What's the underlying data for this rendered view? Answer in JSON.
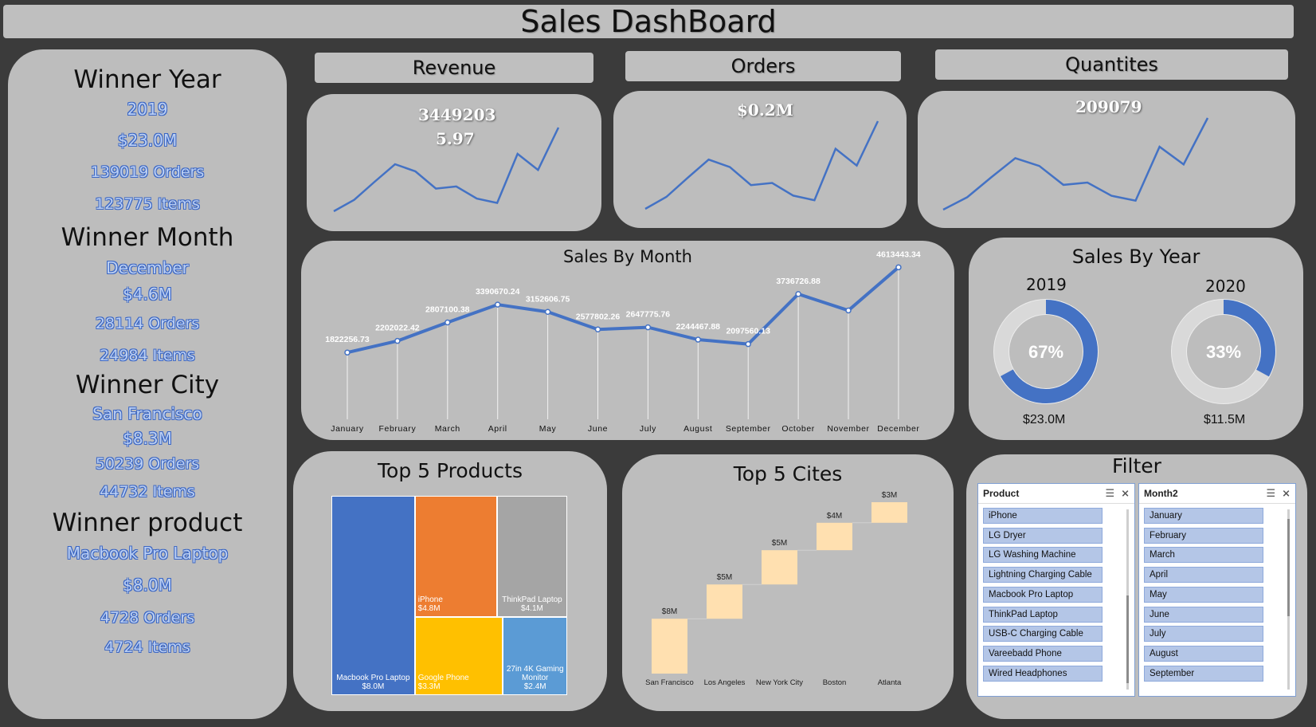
{
  "dashboard": {
    "title": "Sales DashBoard"
  },
  "winners": {
    "year": {
      "heading": "Winner Year",
      "value": "2019",
      "revenue": "$23.0M",
      "orders": "139019 Orders",
      "items": "123775 Items"
    },
    "month": {
      "heading": "Winner Month",
      "value": "December",
      "revenue": "$4.6M",
      "orders": "28114 Orders",
      "items": "24984 Items"
    },
    "city": {
      "heading": "Winner City",
      "value": "San Francisco",
      "revenue": "$8.3M",
      "orders": "50239 Orders",
      "items": "44732 Items"
    },
    "product": {
      "heading": "Winner product",
      "value": "Macbook Pro Laptop",
      "revenue": "$8.0M",
      "orders": "4728 Orders",
      "items": "4724 Items"
    }
  },
  "kpis": {
    "revenue": {
      "label": "Revenue",
      "value": "3449203",
      "value2": "5.97"
    },
    "orders": {
      "label": "Orders",
      "value": "$0.2M"
    },
    "quantities": {
      "label": "Quantites",
      "value": "209079"
    }
  },
  "sparkline": [
    1822256.73,
    2202022.42,
    2807100.38,
    3390670.24,
    3152606.75,
    2577802.26,
    2647775.76,
    2244467.88,
    2097560.13,
    3736726.88,
    3200000,
    4613443.34
  ],
  "sales_by_year": {
    "title": "Sales By Year",
    "items": [
      {
        "year": "2019",
        "pct_label": "67%",
        "pct": 0.67,
        "amount": "$23.0M"
      },
      {
        "year": "2020",
        "pct_label": "33%",
        "pct": 0.33,
        "amount": "$11.5M"
      }
    ]
  },
  "top_products": {
    "title": "Top 5 Products",
    "items": [
      {
        "name": "Macbook Pro Laptop",
        "value": 8.0,
        "label": "$8.0M",
        "color": "#4472c4"
      },
      {
        "name": "iPhone",
        "value": 4.8,
        "label": "$4.8M",
        "color": "#ed7d31"
      },
      {
        "name": "ThinkPad Laptop",
        "value": 4.1,
        "label": "$4.1M",
        "color": "#a5a5a5"
      },
      {
        "name": "Google Phone",
        "value": 3.3,
        "label": "$3.3M",
        "color": "#ffc000"
      },
      {
        "name": "27in 4K Gaming Monitor",
        "value": 2.4,
        "label": "$2.4M",
        "color": "#5b9bd5"
      }
    ]
  },
  "top_cities": {
    "title": "Top 5 Cites",
    "items": [
      {
        "city": "San Francisco",
        "value": 8,
        "label": "$8M"
      },
      {
        "city": "Los Angeles",
        "value": 5,
        "label": "$5M"
      },
      {
        "city": "New York City",
        "value": 5,
        "label": "$5M"
      },
      {
        "city": "Boston",
        "value": 4,
        "label": "$4M"
      },
      {
        "city": "Atlanta",
        "value": 3,
        "label": "$3M"
      }
    ]
  },
  "filter": {
    "title": "Filter",
    "product_slicer": {
      "header": "Product",
      "items": [
        "iPhone",
        "LG Dryer",
        "LG Washing Machine",
        "Lightning Charging Cable",
        "Macbook Pro Laptop",
        "ThinkPad Laptop",
        "USB-C Charging Cable",
        "Vareebadd Phone",
        "Wired Headphones"
      ]
    },
    "month_slicer": {
      "header": "Month2",
      "items": [
        "January",
        "February",
        "March",
        "April",
        "May",
        "June",
        "July",
        "August",
        "September"
      ]
    }
  },
  "chart_data": {
    "type": "line",
    "title": "Sales By Month",
    "categories": [
      "January",
      "February",
      "March",
      "April",
      "May",
      "June",
      "July",
      "August",
      "September",
      "October",
      "November",
      "December"
    ],
    "values": [
      1822256.73,
      2202022.42,
      2807100.38,
      3390670.24,
      3152606.75,
      2577802.26,
      2647775.76,
      2244467.88,
      2097560.13,
      3736726.88,
      3200000,
      4613443.34
    ],
    "labels": [
      "1822256.73",
      "2202022.42",
      "2807100.38",
      "3390670.24",
      "3152606.75",
      "2577802.26",
      "2647775.76",
      "2244467.88",
      "2097560.13",
      "3736726.88",
      "",
      "4613443.34"
    ],
    "color": "#4472c4",
    "grid": false
  }
}
